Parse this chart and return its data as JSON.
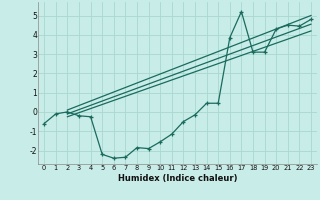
{
  "xlabel": "Humidex (Indice chaleur)",
  "background_color": "#c8ece8",
  "line_color": "#1a6b5e",
  "grid_color": "#a8d8d0",
  "xlim": [
    -0.5,
    23.5
  ],
  "ylim": [
    -2.7,
    5.7
  ],
  "xticks": [
    0,
    1,
    2,
    3,
    4,
    5,
    6,
    7,
    8,
    9,
    10,
    11,
    12,
    13,
    14,
    15,
    16,
    17,
    18,
    19,
    20,
    21,
    22,
    23
  ],
  "yticks": [
    -2,
    -1,
    0,
    1,
    2,
    3,
    4,
    5
  ],
  "curve_x": [
    0,
    1,
    2,
    3,
    4,
    5,
    6,
    7,
    8,
    9,
    10,
    11,
    12,
    13,
    14,
    15,
    16,
    17,
    18,
    19,
    20,
    21,
    22,
    23
  ],
  "curve_y": [
    -0.6,
    -0.1,
    0.0,
    -0.2,
    -0.25,
    -2.2,
    -2.4,
    -2.35,
    -1.85,
    -1.9,
    -1.55,
    -1.15,
    -0.5,
    -0.15,
    0.45,
    0.45,
    3.85,
    5.2,
    3.1,
    3.1,
    4.3,
    4.5,
    4.45,
    4.8
  ],
  "line1_x": [
    2,
    23
  ],
  "line1_y": [
    0.1,
    5.0
  ],
  "line2_x": [
    2,
    23
  ],
  "line2_y": [
    -0.1,
    4.55
  ],
  "line3_x": [
    2,
    23
  ],
  "line3_y": [
    -0.25,
    4.2
  ]
}
